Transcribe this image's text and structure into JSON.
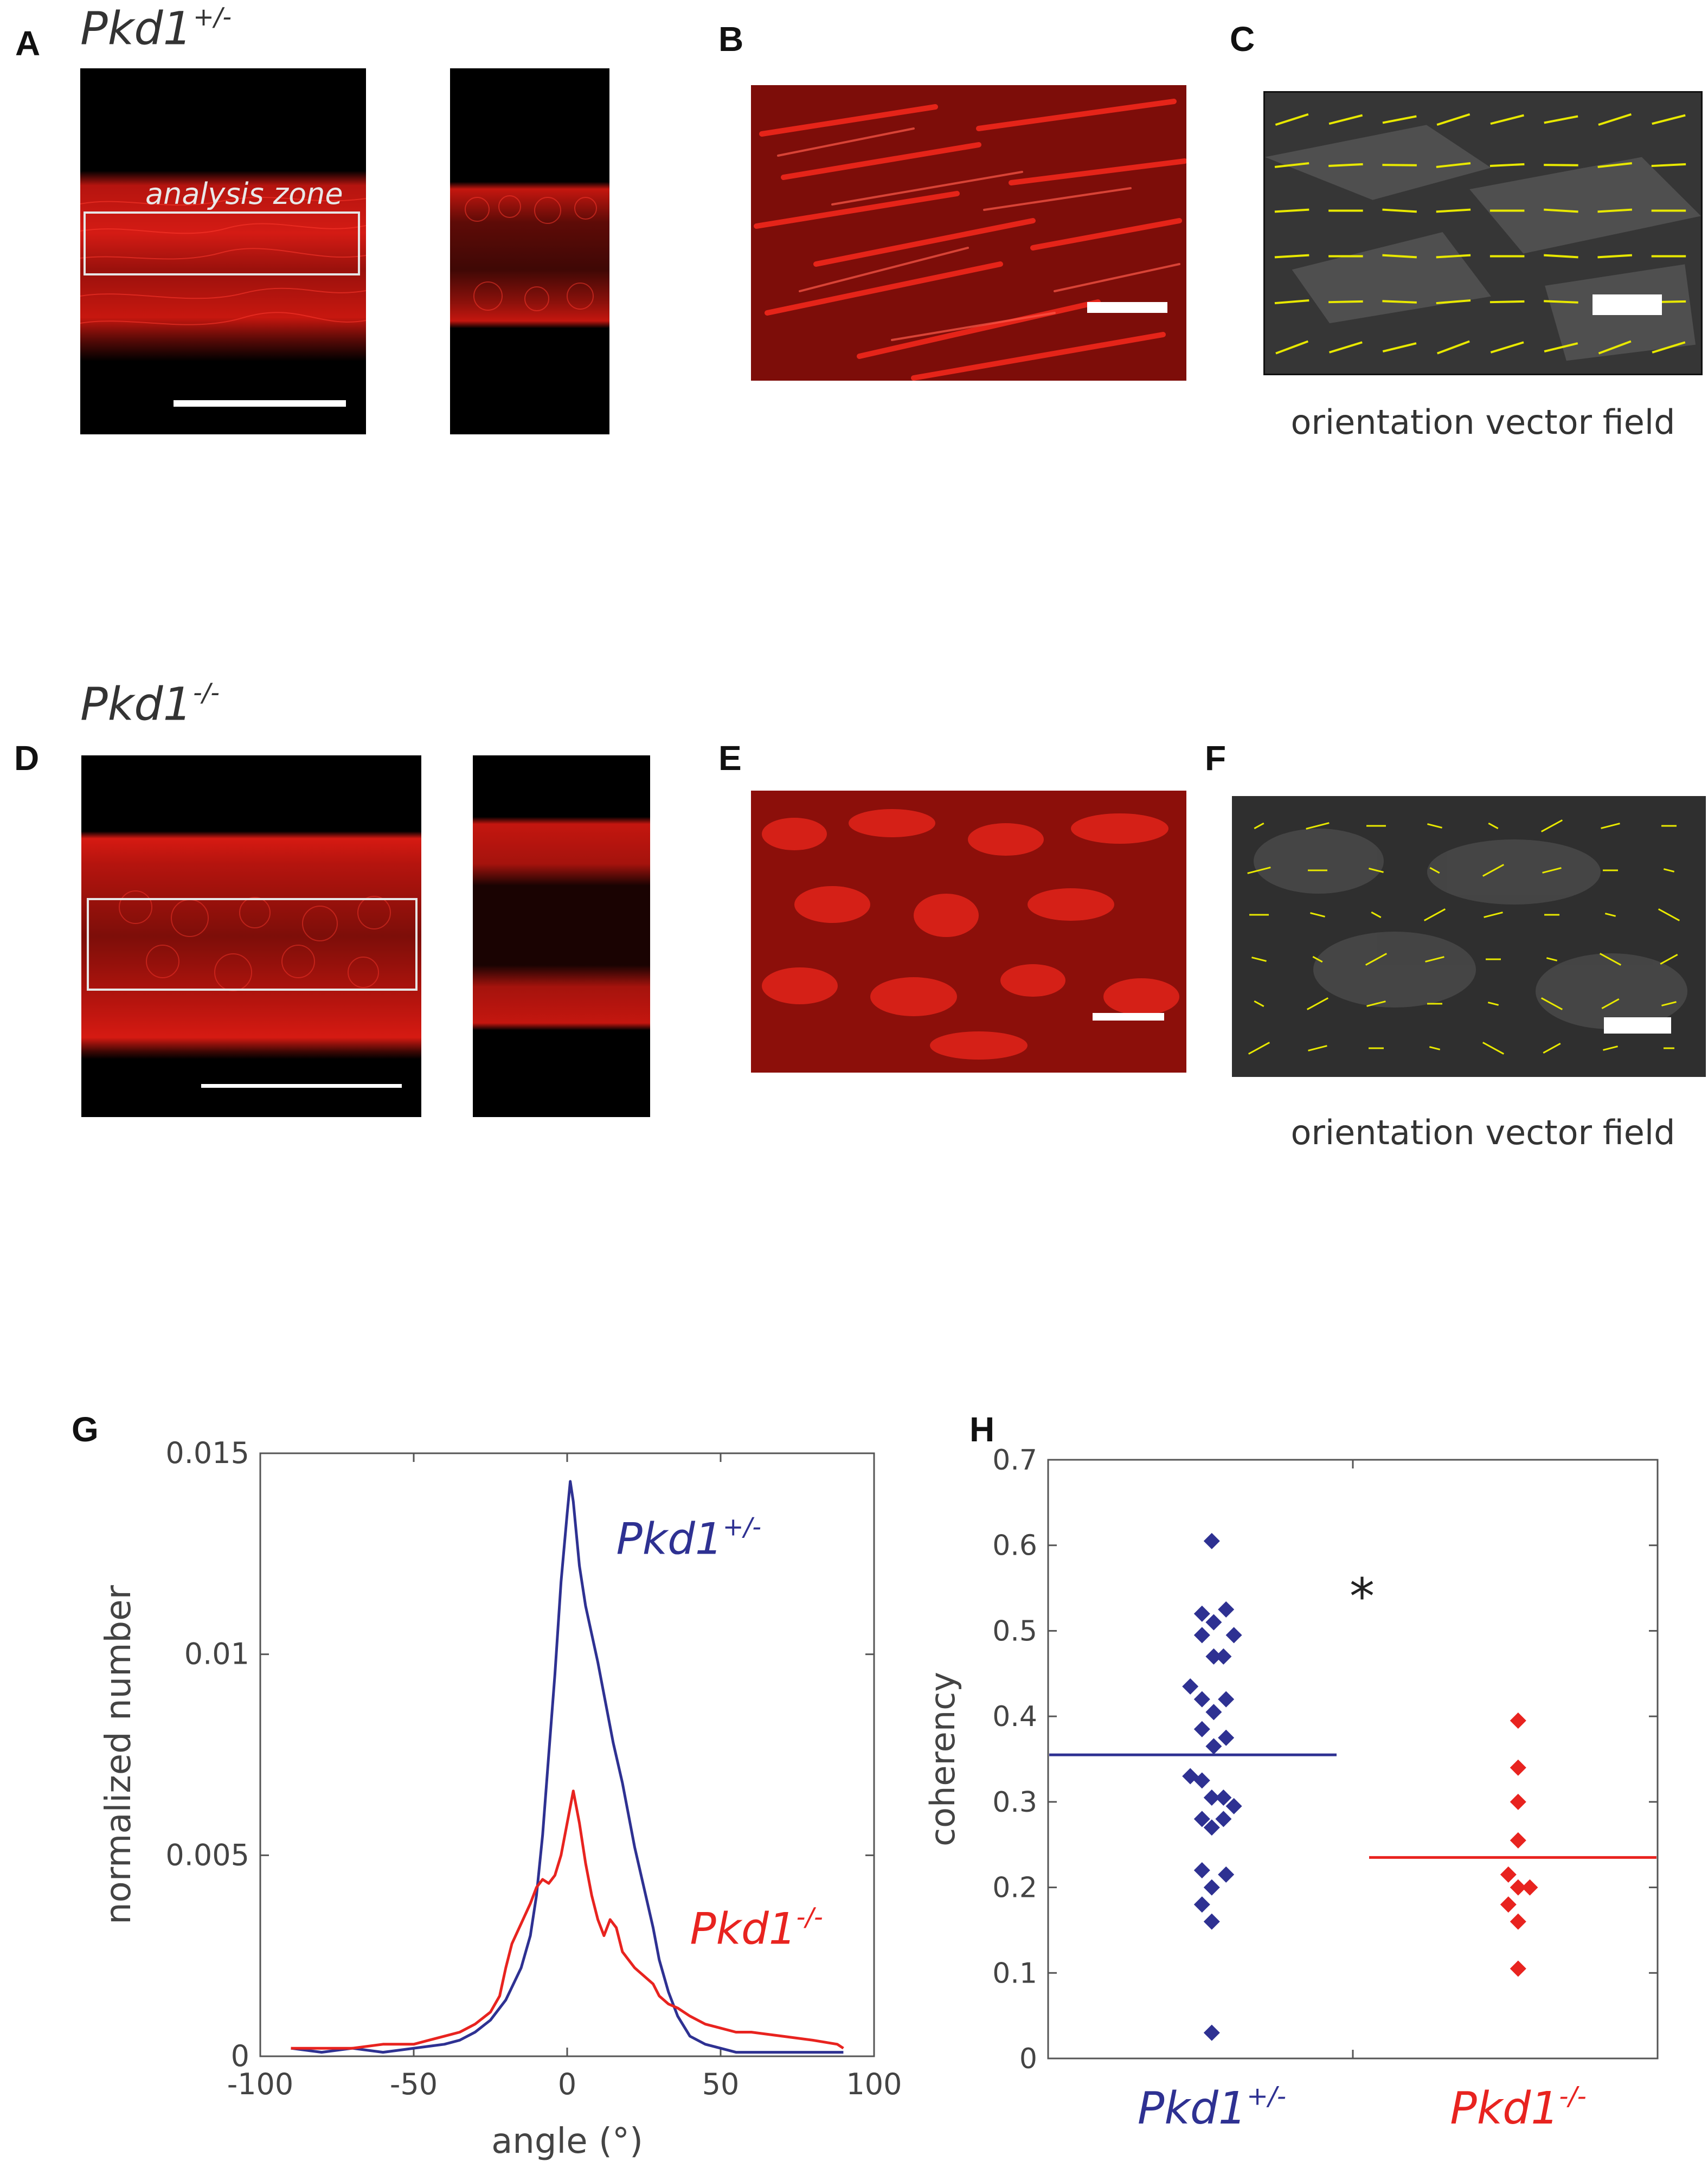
{
  "figure": {
    "row1": {
      "genotype": "Pkd1",
      "genotype_sup": "+/-",
      "labels": {
        "a": "A",
        "b": "B",
        "c": "C"
      },
      "analysis_zone": "analysis zone",
      "caption_c": "orientation vector field"
    },
    "row2": {
      "genotype": "Pkd1",
      "genotype_sup": "-/-",
      "labels": {
        "d": "D",
        "e": "E",
        "f": "F"
      },
      "caption_f": "orientation vector field"
    },
    "panel_g": {
      "label": "G"
    },
    "panel_h": {
      "label": "H"
    }
  },
  "colors": {
    "blue": "#2e3192",
    "red": "#e8231f",
    "yellow": "#e8e800"
  },
  "chart_data": [
    {
      "type": "line",
      "panel": "G",
      "xlabel": "angle (°)",
      "ylabel": "normalized number",
      "xlim": [
        -100,
        100
      ],
      "ylim": [
        0,
        0.015
      ],
      "xticks": [
        "-100",
        "-50",
        "0",
        "50",
        "100"
      ],
      "yticks": [
        "0",
        "0.005",
        "0.01",
        "0.015"
      ],
      "grid": false,
      "annotations": [
        {
          "text": "Pkd1",
          "sup": "+/-",
          "color": "blue"
        },
        {
          "text": "Pkd1",
          "sup": "-/-",
          "color": "red"
        }
      ],
      "series": [
        {
          "name": "Pkd1+/-",
          "color": "#2e3192",
          "x": [
            -90,
            -80,
            -70,
            -60,
            -50,
            -45,
            -40,
            -35,
            -30,
            -25,
            -20,
            -15,
            -12,
            -10,
            -8,
            -6,
            -4,
            -2,
            0,
            1,
            2,
            4,
            6,
            8,
            10,
            12,
            15,
            18,
            20,
            22,
            25,
            28,
            30,
            33,
            36,
            40,
            45,
            50,
            55,
            60,
            70,
            80,
            90
          ],
          "y": [
            0.0002,
            0.0001,
            0.0002,
            0.0001,
            0.0002,
            0.00025,
            0.0003,
            0.0004,
            0.0006,
            0.0009,
            0.0014,
            0.0022,
            0.003,
            0.004,
            0.0055,
            0.0075,
            0.0095,
            0.0118,
            0.0135,
            0.0143,
            0.0138,
            0.0122,
            0.0112,
            0.0105,
            0.0098,
            0.009,
            0.0078,
            0.0068,
            0.006,
            0.0052,
            0.0042,
            0.0032,
            0.0024,
            0.0016,
            0.001,
            0.0005,
            0.0003,
            0.0002,
            0.0001,
            0.0001,
            0.0001,
            0.0001,
            0.0001
          ]
        },
        {
          "name": "Pkd1-/-",
          "color": "#e8231f",
          "x": [
            -90,
            -80,
            -70,
            -60,
            -50,
            -45,
            -40,
            -35,
            -30,
            -25,
            -22,
            -20,
            -18,
            -15,
            -12,
            -10,
            -8,
            -6,
            -4,
            -2,
            0,
            2,
            4,
            6,
            8,
            10,
            12,
            14,
            16,
            18,
            20,
            22,
            25,
            28,
            30,
            33,
            36,
            40,
            45,
            50,
            55,
            60,
            70,
            80,
            88,
            90
          ],
          "y": [
            0.0002,
            0.0002,
            0.0002,
            0.0003,
            0.0003,
            0.0004,
            0.0005,
            0.0006,
            0.0008,
            0.0011,
            0.0015,
            0.0022,
            0.0028,
            0.0033,
            0.0038,
            0.0042,
            0.0044,
            0.0043,
            0.0045,
            0.005,
            0.0058,
            0.0066,
            0.0058,
            0.0048,
            0.004,
            0.0034,
            0.003,
            0.0034,
            0.0032,
            0.0026,
            0.0024,
            0.0022,
            0.002,
            0.0018,
            0.0015,
            0.0013,
            0.0012,
            0.001,
            0.0008,
            0.0007,
            0.0006,
            0.0006,
            0.0005,
            0.0004,
            0.0003,
            0.0002
          ]
        }
      ]
    },
    {
      "type": "scatter",
      "panel": "H",
      "ylabel": "coherency",
      "ylim": [
        0,
        0.7
      ],
      "yticks": [
        "0",
        "0.1",
        "0.2",
        "0.3",
        "0.4",
        "0.5",
        "0.6",
        "0.7"
      ],
      "categories": [
        {
          "text": "Pkd1",
          "sup": "+/-",
          "color": "blue"
        },
        {
          "text": "Pkd1",
          "sup": "-/-",
          "color": "red"
        }
      ],
      "significance": "*",
      "grid": false,
      "series": [
        {
          "name": "Pkd1+/-",
          "color": "#2e3192",
          "mean": 0.355,
          "points": [
            [
              -0.42,
              0.605
            ],
            [
              -0.72,
              0.52
            ],
            [
              -0.36,
              0.51
            ],
            [
              0.02,
              0.525
            ],
            [
              -0.72,
              0.495
            ],
            [
              -0.36,
              0.47
            ],
            [
              -0.06,
              0.47
            ],
            [
              0.26,
              0.495
            ],
            [
              -1.08,
              0.435
            ],
            [
              -0.72,
              0.42
            ],
            [
              -0.36,
              0.405
            ],
            [
              0.02,
              0.42
            ],
            [
              -0.72,
              0.385
            ],
            [
              -0.36,
              0.365
            ],
            [
              0.02,
              0.375
            ],
            [
              -1.08,
              0.33
            ],
            [
              -0.72,
              0.325
            ],
            [
              -0.42,
              0.305
            ],
            [
              -0.06,
              0.305
            ],
            [
              0.26,
              0.295
            ],
            [
              -0.72,
              0.28
            ],
            [
              -0.42,
              0.27
            ],
            [
              -0.06,
              0.28
            ],
            [
              -0.72,
              0.22
            ],
            [
              -0.42,
              0.2
            ],
            [
              0.02,
              0.215
            ],
            [
              -0.72,
              0.18
            ],
            [
              -0.42,
              0.16
            ],
            [
              -0.42,
              0.03
            ]
          ]
        },
        {
          "name": "Pkd1-/-",
          "color": "#e8231f",
          "mean": 0.235,
          "points": [
            [
              -0.42,
              0.395
            ],
            [
              -0.42,
              0.34
            ],
            [
              -0.42,
              0.3
            ],
            [
              -0.42,
              0.255
            ],
            [
              -0.72,
              0.215
            ],
            [
              -0.42,
              0.2
            ],
            [
              -0.06,
              0.2
            ],
            [
              -0.72,
              0.18
            ],
            [
              -0.42,
              0.16
            ],
            [
              -0.42,
              0.105
            ]
          ]
        }
      ]
    }
  ]
}
